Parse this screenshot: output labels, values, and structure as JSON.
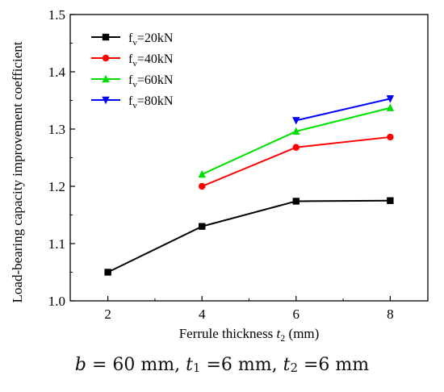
{
  "chart_data": {
    "type": "line",
    "ylabel": "Load-bearing capacity improvement coefficient",
    "xlabel_text": "Ferrule thickness ",
    "xlabel_var": "t",
    "xlabel_sub": "2",
    "xlabel_unit": " (mm)",
    "xlim": [
      1.2,
      8.8
    ],
    "ylim": [
      1.0,
      1.5
    ],
    "xticks": [
      2,
      4,
      6,
      8
    ],
    "yticks": [
      1.0,
      1.1,
      1.2,
      1.3,
      1.4,
      1.5
    ],
    "ytick_labels": [
      "1.0",
      "1.1",
      "1.2",
      "1.3",
      "1.4",
      "1.5"
    ],
    "legend_position": "top-left",
    "series": [
      {
        "name": "f",
        "sub": "v",
        "suffix": "=20kN",
        "color": "#000000",
        "marker": "square",
        "x": [
          2,
          4,
          6,
          8
        ],
        "y": [
          1.05,
          1.13,
          1.174,
          1.175
        ]
      },
      {
        "name": "f",
        "sub": "v",
        "suffix": "=40kN",
        "color": "#ff0000",
        "marker": "circle",
        "x": [
          4,
          6,
          8
        ],
        "y": [
          1.2,
          1.268,
          1.286
        ]
      },
      {
        "name": "f",
        "sub": "v",
        "suffix": "=60kN",
        "color": "#00e000",
        "marker": "triangle-up",
        "x": [
          4,
          6,
          8
        ],
        "y": [
          1.221,
          1.296,
          1.337
        ]
      },
      {
        "name": "f",
        "sub": "v",
        "suffix": "=80kN",
        "color": "#0000ff",
        "marker": "triangle-down",
        "x": [
          6,
          8
        ],
        "y": [
          1.315,
          1.353
        ]
      }
    ]
  },
  "caption": {
    "b_var": "b",
    "b_text": " = 60 mm, ",
    "t1_var": "t",
    "t1_sub": "1",
    "t1_text": " =6 mm, ",
    "t2_var": "t",
    "t2_sub": "2",
    "t2_text": " =6 mm"
  }
}
